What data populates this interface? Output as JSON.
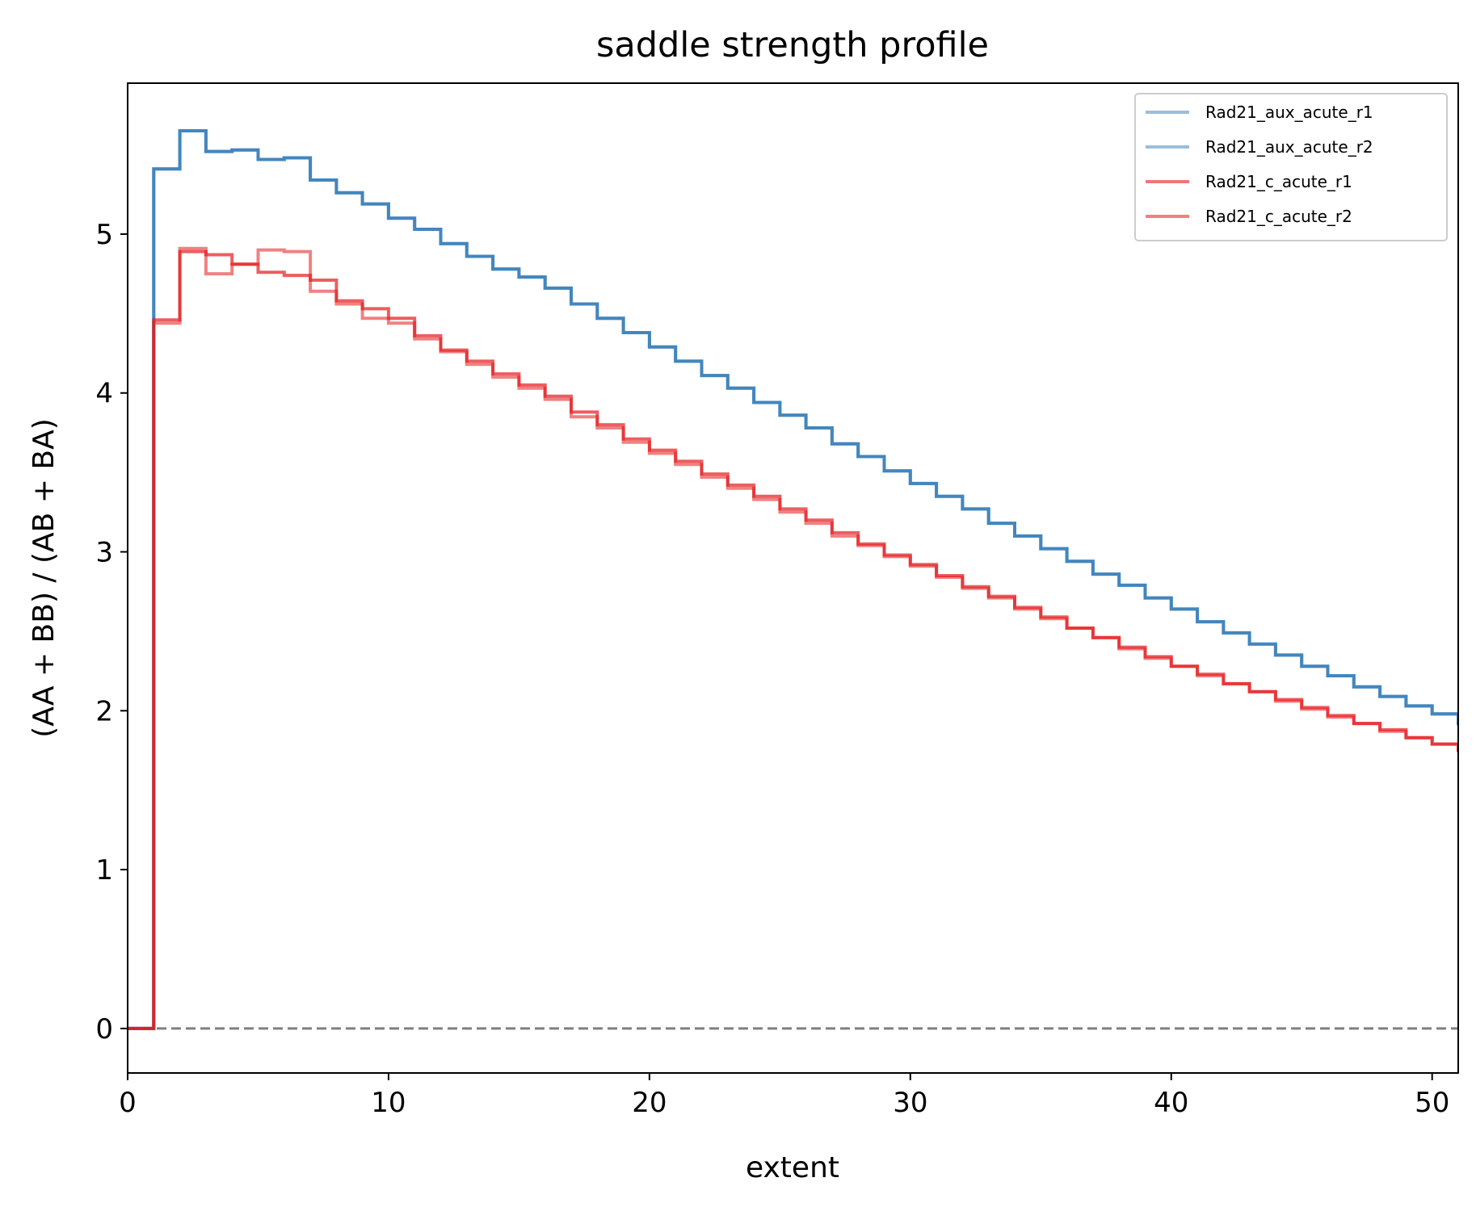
{
  "chart_data": {
    "type": "line",
    "drawstyle": "steps-post",
    "title": "saddle strength profile",
    "xlabel": "extent",
    "ylabel": "(AA + BB) / (AB + BA)",
    "xlim": [
      0,
      51
    ],
    "ylim": [
      -0.28,
      5.95
    ],
    "xticks": [
      0,
      10,
      20,
      30,
      40,
      50
    ],
    "yticks": [
      0,
      1,
      2,
      3,
      4,
      5
    ],
    "grid": false,
    "legend_position": "top-right",
    "reference_line": {
      "y": 0,
      "style": "dashed",
      "color": "#808080"
    },
    "x": [
      0,
      1,
      2,
      3,
      4,
      5,
      6,
      7,
      8,
      9,
      10,
      11,
      12,
      13,
      14,
      15,
      16,
      17,
      18,
      19,
      20,
      21,
      22,
      23,
      24,
      25,
      26,
      27,
      28,
      29,
      30,
      31,
      32,
      33,
      34,
      35,
      36,
      37,
      38,
      39,
      40,
      41,
      42,
      43,
      44,
      45,
      46,
      47,
      48,
      49,
      50,
      51
    ],
    "series": [
      {
        "name": "Rad21_aux_acute_r1",
        "color": "#377eb8",
        "values": [
          0.0,
          5.41,
          5.65,
          5.52,
          5.53,
          5.47,
          5.48,
          5.34,
          5.26,
          5.19,
          5.1,
          5.03,
          4.94,
          4.86,
          4.78,
          4.73,
          4.66,
          4.56,
          4.47,
          4.38,
          4.29,
          4.2,
          4.11,
          4.03,
          3.94,
          3.86,
          3.78,
          3.68,
          3.6,
          3.51,
          3.43,
          3.35,
          3.27,
          3.18,
          3.1,
          3.02,
          2.94,
          2.86,
          2.79,
          2.71,
          2.64,
          2.56,
          2.49,
          2.42,
          2.35,
          2.28,
          2.22,
          2.15,
          2.09,
          2.03,
          1.98,
          1.92
        ]
      },
      {
        "name": "Rad21_aux_acute_r2",
        "color": "#377eb8",
        "values": [
          0.0,
          5.41,
          5.65,
          5.52,
          5.53,
          5.47,
          5.48,
          5.34,
          5.26,
          5.19,
          5.1,
          5.03,
          4.94,
          4.86,
          4.78,
          4.73,
          4.66,
          4.56,
          4.47,
          4.38,
          4.29,
          4.2,
          4.11,
          4.03,
          3.94,
          3.86,
          3.78,
          3.68,
          3.6,
          3.51,
          3.43,
          3.35,
          3.27,
          3.18,
          3.1,
          3.02,
          2.94,
          2.86,
          2.79,
          2.71,
          2.64,
          2.56,
          2.49,
          2.42,
          2.35,
          2.28,
          2.22,
          2.15,
          2.09,
          2.03,
          1.98,
          1.92
        ]
      },
      {
        "name": "Rad21_c_acute_r1",
        "color": "#e41a1c",
        "values": [
          0.0,
          4.46,
          4.89,
          4.87,
          4.81,
          4.76,
          4.74,
          4.71,
          4.58,
          4.53,
          4.47,
          4.36,
          4.27,
          4.2,
          4.12,
          4.05,
          3.98,
          3.88,
          3.8,
          3.71,
          3.64,
          3.57,
          3.49,
          3.42,
          3.35,
          3.27,
          3.2,
          3.12,
          3.05,
          2.98,
          2.92,
          2.85,
          2.78,
          2.72,
          2.65,
          2.59,
          2.52,
          2.46,
          2.4,
          2.34,
          2.28,
          2.23,
          2.17,
          2.12,
          2.07,
          2.02,
          1.97,
          1.92,
          1.88,
          1.83,
          1.79,
          1.75
        ]
      },
      {
        "name": "Rad21_c_acute_r2",
        "color": "#e41a1c",
        "values": [
          0.0,
          4.44,
          4.91,
          4.75,
          4.81,
          4.9,
          4.89,
          4.64,
          4.56,
          4.47,
          4.44,
          4.34,
          4.26,
          4.18,
          4.1,
          4.03,
          3.96,
          3.85,
          3.78,
          3.69,
          3.62,
          3.55,
          3.47,
          3.4,
          3.33,
          3.25,
          3.18,
          3.1,
          3.04,
          2.97,
          2.91,
          2.84,
          2.77,
          2.71,
          2.64,
          2.58,
          2.52,
          2.46,
          2.39,
          2.33,
          2.28,
          2.22,
          2.17,
          2.12,
          2.06,
          2.01,
          1.96,
          1.92,
          1.87,
          1.83,
          1.79,
          1.75
        ]
      }
    ]
  }
}
